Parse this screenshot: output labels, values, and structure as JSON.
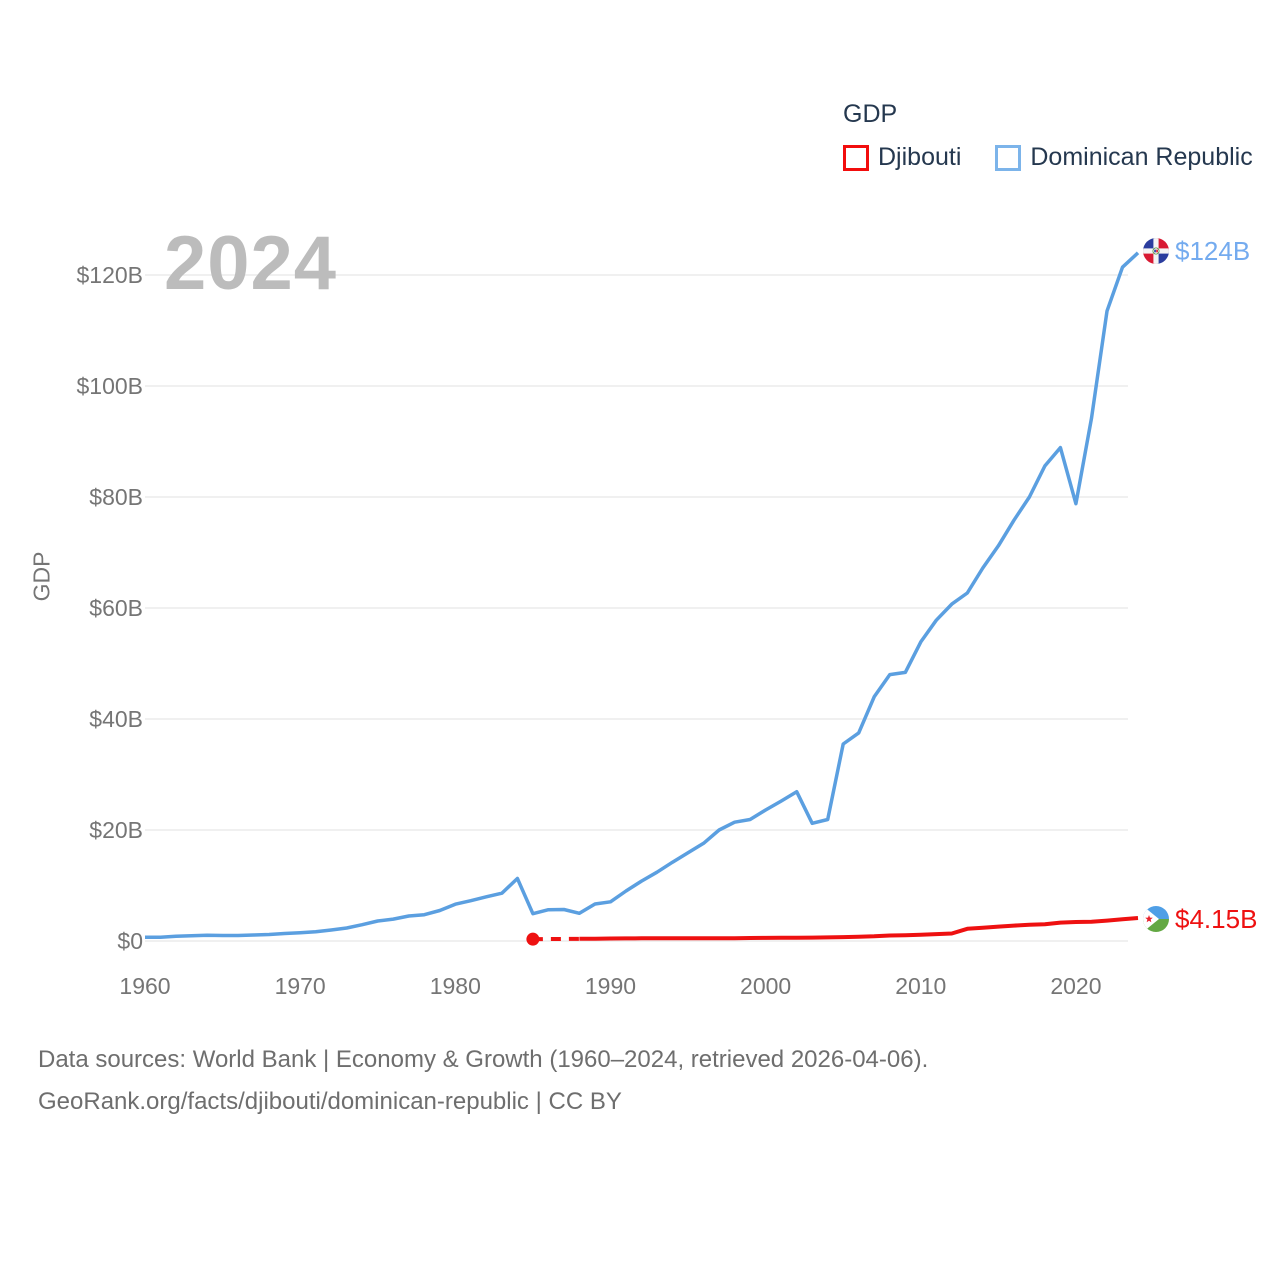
{
  "watermark": "2024",
  "legend": {
    "title": "GDP",
    "items": [
      {
        "label": "Djibouti",
        "color": "#f20d0d"
      },
      {
        "label": "Dominican Republic",
        "color": "#7cb4ea"
      }
    ]
  },
  "footer": {
    "line1": "Data sources: World Bank | Economy & Growth (1960–2024, retrieved 2026-04-06).",
    "line2": "GeoRank.org/facts/djibouti/dominican-republic | CC BY"
  },
  "chart_data": {
    "type": "line",
    "ylabel": "GDP",
    "xlabel": "",
    "xlim": [
      1960,
      2024
    ],
    "ylim": [
      0,
      130
    ],
    "grid": "horizontal",
    "grid_color": "#ececec",
    "legend_position": "top-right",
    "x_ticks": [
      1960,
      1970,
      1980,
      1990,
      2000,
      2010,
      2020
    ],
    "y_ticks": [
      {
        "value": 0,
        "label": "$0"
      },
      {
        "value": 20,
        "label": "$20B"
      },
      {
        "value": 40,
        "label": "$40B"
      },
      {
        "value": 60,
        "label": "$60B"
      },
      {
        "value": 80,
        "label": "$80B"
      },
      {
        "value": 100,
        "label": "$100B"
      },
      {
        "value": 120,
        "label": "$120B"
      }
    ],
    "series": [
      {
        "name": "Dominican Republic",
        "color": "#5b9fe0",
        "line_width": 3.5,
        "end_label": "$124B",
        "end_label_color": "#74abef",
        "points": [
          [
            1960,
            0.67
          ],
          [
            1961,
            0.68
          ],
          [
            1962,
            0.85
          ],
          [
            1963,
            0.96
          ],
          [
            1964,
            1.05
          ],
          [
            1965,
            0.99
          ],
          [
            1966,
            1.0
          ],
          [
            1967,
            1.08
          ],
          [
            1968,
            1.17
          ],
          [
            1969,
            1.36
          ],
          [
            1970,
            1.49
          ],
          [
            1971,
            1.67
          ],
          [
            1972,
            1.99
          ],
          [
            1973,
            2.35
          ],
          [
            1974,
            2.93
          ],
          [
            1975,
            3.6
          ],
          [
            1976,
            3.95
          ],
          [
            1977,
            4.51
          ],
          [
            1978,
            4.73
          ],
          [
            1979,
            5.5
          ],
          [
            1980,
            6.63
          ],
          [
            1981,
            7.27
          ],
          [
            1982,
            7.96
          ],
          [
            1983,
            8.62
          ],
          [
            1984,
            11.26
          ],
          [
            1985,
            4.92
          ],
          [
            1986,
            5.64
          ],
          [
            1987,
            5.68
          ],
          [
            1988,
            5.0
          ],
          [
            1989,
            6.67
          ],
          [
            1990,
            7.07
          ],
          [
            1991,
            9.0
          ],
          [
            1992,
            10.8
          ],
          [
            1993,
            12.4
          ],
          [
            1994,
            14.2
          ],
          [
            1995,
            15.9
          ],
          [
            1996,
            17.6
          ],
          [
            1997,
            20.0
          ],
          [
            1998,
            21.4
          ],
          [
            1999,
            21.9
          ],
          [
            2000,
            23.6
          ],
          [
            2001,
            25.2
          ],
          [
            2002,
            26.9
          ],
          [
            2003,
            21.2
          ],
          [
            2004,
            21.9
          ],
          [
            2005,
            35.5
          ],
          [
            2006,
            37.5
          ],
          [
            2007,
            44.0
          ],
          [
            2008,
            48.0
          ],
          [
            2009,
            48.4
          ],
          [
            2010,
            53.9
          ],
          [
            2011,
            57.8
          ],
          [
            2012,
            60.7
          ],
          [
            2013,
            62.7
          ],
          [
            2014,
            67.2
          ],
          [
            2015,
            71.2
          ],
          [
            2016,
            75.8
          ],
          [
            2017,
            80.0
          ],
          [
            2018,
            85.6
          ],
          [
            2019,
            88.9
          ],
          [
            2020,
            78.8
          ],
          [
            2021,
            94.2
          ],
          [
            2022,
            113.5
          ],
          [
            2023,
            121.4
          ],
          [
            2024,
            124.0
          ]
        ]
      },
      {
        "name": "Djibouti",
        "color": "#ee1111",
        "line_width": 4,
        "end_label": "$4.15B",
        "end_label_color": "#ee1111",
        "gap_after_first_point": true,
        "points": [
          [
            1985,
            0.33
          ],
          [
            1988,
            0.39
          ],
          [
            1989,
            0.41
          ],
          [
            1990,
            0.45
          ],
          [
            1991,
            0.46
          ],
          [
            1992,
            0.48
          ],
          [
            1993,
            0.48
          ],
          [
            1994,
            0.49
          ],
          [
            1995,
            0.5
          ],
          [
            1996,
            0.49
          ],
          [
            1997,
            0.5
          ],
          [
            1998,
            0.51
          ],
          [
            1999,
            0.54
          ],
          [
            2000,
            0.55
          ],
          [
            2001,
            0.57
          ],
          [
            2002,
            0.59
          ],
          [
            2003,
            0.62
          ],
          [
            2004,
            0.64
          ],
          [
            2005,
            0.71
          ],
          [
            2006,
            0.77
          ],
          [
            2007,
            0.85
          ],
          [
            2008,
            0.99
          ],
          [
            2009,
            1.05
          ],
          [
            2010,
            1.13
          ],
          [
            2011,
            1.24
          ],
          [
            2012,
            1.35
          ],
          [
            2013,
            2.19
          ],
          [
            2014,
            2.38
          ],
          [
            2015,
            2.6
          ],
          [
            2016,
            2.77
          ],
          [
            2017,
            2.92
          ],
          [
            2018,
            3.02
          ],
          [
            2019,
            3.32
          ],
          [
            2020,
            3.42
          ],
          [
            2021,
            3.48
          ],
          [
            2022,
            3.68
          ],
          [
            2023,
            3.92
          ],
          [
            2024,
            4.15
          ]
        ]
      }
    ]
  }
}
